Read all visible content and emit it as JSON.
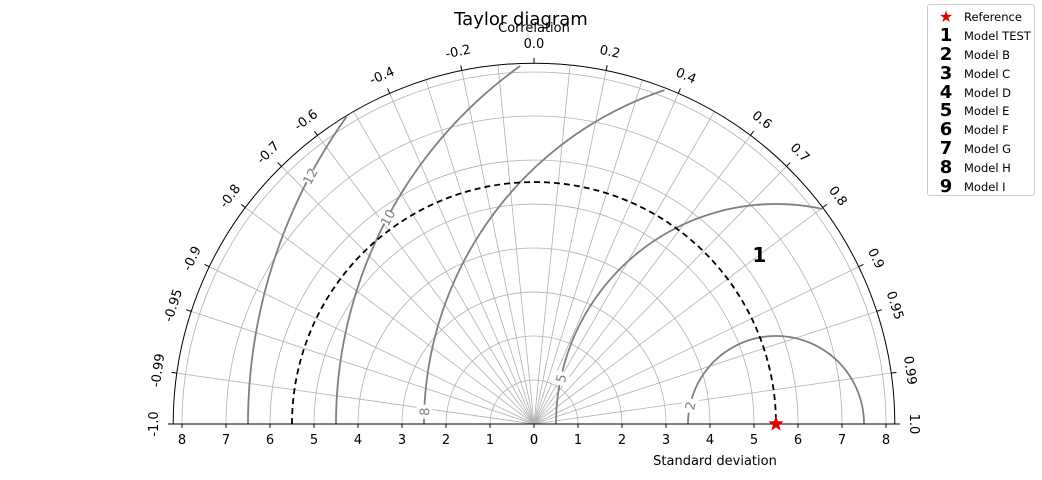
{
  "chart_data": {
    "type": "taylor-diagram",
    "title": "Taylor diagram",
    "correlation_label": "Correlation",
    "std_label": "Standard deviation",
    "std_range": [
      -8.2,
      8.2
    ],
    "std_ticks": [
      8,
      7,
      6,
      5,
      4,
      3,
      2,
      1,
      0,
      0,
      1,
      2,
      3,
      4,
      5,
      6,
      7,
      8
    ],
    "std_tick_values": [
      -8,
      -7,
      -6,
      -5,
      -4,
      -3,
      -2,
      -1,
      0,
      0,
      1,
      2,
      3,
      4,
      5,
      6,
      7,
      8
    ],
    "correlation_ticks": [
      "1.0",
      "0.99",
      "0.95",
      "0.9",
      "0.8",
      "0.7",
      "0.6",
      "0.4",
      "0.2",
      "0.0",
      "-0.2",
      "-0.4",
      "-0.6",
      "-0.7",
      "-0.8",
      "-0.9",
      "-0.95",
      "-0.99",
      "-1.0"
    ],
    "correlation_tick_values": [
      1.0,
      0.99,
      0.95,
      0.9,
      0.8,
      0.7,
      0.6,
      0.4,
      0.2,
      0.0,
      -0.2,
      -0.4,
      -0.6,
      -0.7,
      -0.8,
      -0.9,
      -0.95,
      -0.99,
      -1.0
    ],
    "grid_std_values": [
      1,
      2,
      3,
      4,
      5,
      6,
      7,
      8
    ],
    "grid_correlation_values": [
      0.1,
      0.2,
      0.3,
      0.4,
      0.5,
      0.6,
      0.7,
      0.8,
      0.9,
      0.95,
      0.99,
      -0.1,
      -0.2,
      -0.3,
      -0.4,
      -0.5,
      -0.6,
      -0.7,
      -0.8,
      -0.9,
      -0.95,
      -0.99
    ],
    "grid": true,
    "reference": {
      "label": "Reference",
      "std": 5.5,
      "correlation": 1.0,
      "color": "#e00000"
    },
    "rms_contours": [
      2,
      5,
      8,
      10,
      12
    ],
    "rms_contour_labels": [
      "2",
      "5",
      "8",
      "10",
      "12"
    ],
    "models": [
      {
        "marker": "1",
        "name": "Model TEST",
        "std": 6.4,
        "correlation": 0.8
      }
    ],
    "legend": {
      "placement": "top-right, outside",
      "entries": [
        {
          "marker": "★",
          "label": "Reference"
        },
        {
          "marker": "1",
          "label": "Model TEST"
        },
        {
          "marker": "2",
          "label": "Model B"
        },
        {
          "marker": "3",
          "label": "Model C"
        },
        {
          "marker": "4",
          "label": "Model D"
        },
        {
          "marker": "5",
          "label": "Model E"
        },
        {
          "marker": "6",
          "label": "Model F"
        },
        {
          "marker": "7",
          "label": "Model G"
        },
        {
          "marker": "8",
          "label": "Model H"
        },
        {
          "marker": "9",
          "label": "Model I"
        }
      ]
    },
    "colors": {
      "contour": "#808080",
      "grid": "#b0b0b0",
      "reference_arc": "#000000",
      "reference_marker": "#e00000"
    }
  }
}
